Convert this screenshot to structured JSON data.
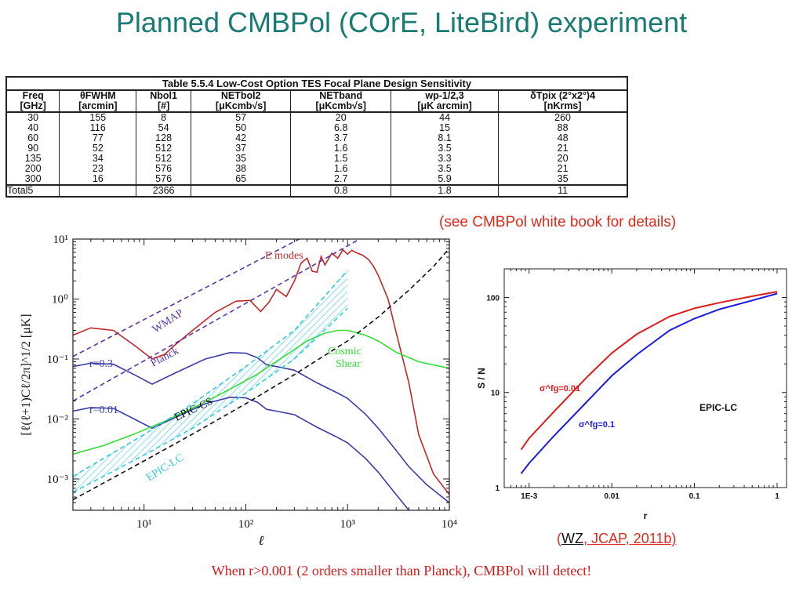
{
  "page": {
    "title": "Planned CMBPol (COrE, LiteBird) experiment",
    "see_note": "(see CMBPol white book for details)",
    "ref_note": {
      "open": "(",
      "wz": "WZ",
      "rest": ", JCAP, 2011b)"
    },
    "footer": "When r>0.001 (2 orders smaller than Planck), CMBPol will detect!"
  },
  "colors": {
    "title": "#1a7a74",
    "note_red": "#e0291c",
    "footer_red": "#d51a1a"
  },
  "chart_data": [
    {
      "type": "table",
      "title": "Table 5.5.4  Low-Cost Option TES Focal Plane Design Sensitivity",
      "columns": [
        [
          "Freq",
          "[GHz]"
        ],
        [
          "θFWHM",
          "[arcmin]"
        ],
        [
          "Nbol1",
          "[#]"
        ],
        [
          "NETbol2",
          "[μKcmb√s]"
        ],
        [
          "NETband",
          "[μKcmb√s]"
        ],
        [
          "wp-1/2,3",
          "[μK arcmin]"
        ],
        [
          "δTpix (2°x2°)4",
          "[nKrms]"
        ]
      ],
      "rows": [
        [
          "30",
          "155",
          "8",
          "57",
          "20",
          "44",
          "260"
        ],
        [
          "40",
          "116",
          "54",
          "50",
          "6.8",
          "15",
          "88"
        ],
        [
          "60",
          "77",
          "128",
          "42",
          "3.7",
          "8.1",
          "48"
        ],
        [
          "90",
          "52",
          "512",
          "37",
          "1.6",
          "3.5",
          "21"
        ],
        [
          "135",
          "34",
          "512",
          "35",
          "1.5",
          "3.3",
          "20"
        ],
        [
          "200",
          "23",
          "576",
          "38",
          "1.6",
          "3.5",
          "21"
        ],
        [
          "300",
          "16",
          "576",
          "65",
          "2.7",
          "5.9",
          "35"
        ]
      ],
      "total_row": [
        "Total5",
        "",
        "2366",
        "",
        "0.8",
        "1.8",
        "11"
      ]
    },
    {
      "type": "line",
      "xlabel": "ℓ",
      "ylabel": "[ℓ(ℓ+1)Cℓ/2π]^1/2 [μK]",
      "xscale": "log",
      "yscale": "log",
      "xlim": [
        2,
        10000
      ],
      "ylim": [
        0.0003,
        10
      ],
      "xticks": [
        "10¹",
        "10²",
        "10³",
        "10⁴"
      ],
      "yticks": [
        "10¹",
        "10⁰",
        "10⁻¹",
        "10⁻²",
        "10⁻³"
      ],
      "labels": {
        "emodes": "E modes",
        "wmap": "WMAP",
        "planck": "Planck",
        "r03": "r=0.3",
        "r001": "r=0.01",
        "epic_cs": "EPIC-CS",
        "epic_lc": "EPIC-LC",
        "cosmic": "Cosmic",
        "shear": "Shear"
      },
      "series": [
        {
          "key": "emodes",
          "color": "#c0282a",
          "dash": false,
          "x": [
            2,
            3,
            5,
            8,
            12,
            16,
            20,
            30,
            50,
            80,
            110,
            140,
            170,
            200,
            250,
            300,
            350,
            400,
            450,
            500,
            550,
            600,
            700,
            800,
            900,
            1000,
            1100,
            1200,
            1400,
            1600,
            1800,
            2000,
            2500,
            3000,
            4000,
            5000,
            7000,
            10000
          ],
          "y": [
            0.25,
            0.33,
            0.3,
            0.17,
            0.1,
            0.12,
            0.17,
            0.3,
            0.6,
            0.92,
            0.95,
            0.62,
            0.9,
            1.45,
            1.1,
            2.0,
            4.0,
            4.8,
            2.9,
            2.8,
            5.1,
            3.7,
            5.8,
            4.8,
            6.6,
            5.6,
            6.5,
            6.0,
            5.4,
            4.6,
            3.5,
            2.5,
            1.0,
            0.28,
            0.04,
            0.0055,
            0.0012,
            0.00055
          ]
        },
        {
          "key": "r03",
          "color": "#3c3ca8",
          "dash": false,
          "x": [
            2,
            3,
            5,
            8,
            12,
            20,
            40,
            70,
            100,
            130,
            160,
            200,
            300,
            500,
            800,
            1000,
            1500,
            2000,
            3000,
            4000,
            6000,
            10000
          ],
          "y": [
            0.075,
            0.085,
            0.082,
            0.055,
            0.038,
            0.058,
            0.1,
            0.128,
            0.125,
            0.105,
            0.08,
            0.075,
            0.065,
            0.04,
            0.027,
            0.022,
            0.012,
            0.007,
            0.003,
            0.0016,
            0.0008,
            0.0004
          ]
        },
        {
          "key": "r001",
          "color": "#3c3ca8",
          "dash": false,
          "x": [
            2,
            3,
            5,
            8,
            12,
            20,
            40,
            70,
            100,
            130,
            160,
            200,
            300,
            500,
            800,
            1000,
            1500,
            2000,
            3000,
            4000
          ],
          "y": [
            0.0135,
            0.0155,
            0.015,
            0.01,
            0.007,
            0.0105,
            0.018,
            0.023,
            0.0225,
            0.019,
            0.0145,
            0.0135,
            0.0118,
            0.0073,
            0.0049,
            0.004,
            0.0022,
            0.0013,
            0.00055,
            0.0003
          ]
        },
        {
          "key": "cosmic_shear",
          "color": "#33dd33",
          "dash": false,
          "x": [
            2,
            4,
            8,
            16,
            32,
            64,
            128,
            256,
            400,
            600,
            800,
            1000,
            1500,
            2000,
            3000,
            5000,
            10000
          ],
          "y": [
            0.0026,
            0.0036,
            0.0056,
            0.0092,
            0.016,
            0.029,
            0.055,
            0.12,
            0.2,
            0.27,
            0.3,
            0.3,
            0.25,
            0.2,
            0.13,
            0.09,
            0.07
          ]
        },
        {
          "key": "wmap",
          "color": "#5b36a8",
          "dash": true,
          "x": [
            2,
            10000
          ],
          "y": [
            0.11,
            200
          ]
        },
        {
          "key": "planck",
          "color": "#5b36a8",
          "dash": true,
          "x": [
            2,
            10000
          ],
          "y": [
            0.02,
            70
          ]
        },
        {
          "key": "epic_black",
          "color": "#111111",
          "dash": true,
          "x": [
            2,
            10,
            30,
            100,
            300,
            1000,
            2000,
            4000,
            7000,
            10000
          ],
          "y": [
            0.00045,
            0.002,
            0.0056,
            0.018,
            0.055,
            0.2,
            0.5,
            1.4,
            3.5,
            7.0
          ]
        },
        {
          "key": "epic_lc_upper",
          "color": "#33c8e0",
          "dash": true,
          "x": [
            2,
            10,
            30,
            100,
            300,
            1000
          ],
          "y": [
            0.0011,
            0.0055,
            0.018,
            0.075,
            0.3,
            3.0
          ]
        },
        {
          "key": "epic_lc_lower",
          "color": "#33c8e0",
          "dash": true,
          "x": [
            2,
            10,
            30,
            100,
            300,
            1000
          ],
          "y": [
            0.0006,
            0.0025,
            0.007,
            0.027,
            0.1,
            0.7
          ]
        }
      ]
    },
    {
      "type": "line",
      "xlabel": "r",
      "ylabel": "S / N",
      "xscale": "log",
      "yscale": "log",
      "xlim": [
        0.0005,
        1.3
      ],
      "ylim": [
        1,
        200
      ],
      "xticks": [
        "1E-3",
        "0.01",
        "0.1",
        "1"
      ],
      "yticks": [
        "100",
        "10",
        "1"
      ],
      "annotations": {
        "label": "EPIC-LC",
        "red_label": "σ^fg=0.01",
        "blue_label": "σ^fg=0.1"
      },
      "series": [
        {
          "key": "sigma_001",
          "color": "#e01b1b",
          "x": [
            0.0008,
            0.001,
            0.002,
            0.005,
            0.01,
            0.02,
            0.05,
            0.1,
            0.2,
            0.5,
            1
          ],
          "y": [
            2.5,
            3.3,
            6.3,
            14.5,
            26,
            41,
            63,
            77,
            88,
            103,
            115
          ]
        },
        {
          "key": "sigma_01",
          "color": "#1a1ae0",
          "x": [
            0.0008,
            0.001,
            0.002,
            0.005,
            0.01,
            0.02,
            0.05,
            0.1,
            0.2,
            0.5,
            1
          ],
          "y": [
            1.4,
            1.8,
            3.5,
            8.0,
            15,
            25,
            45,
            60,
            75,
            93,
            110
          ]
        }
      ]
    }
  ]
}
